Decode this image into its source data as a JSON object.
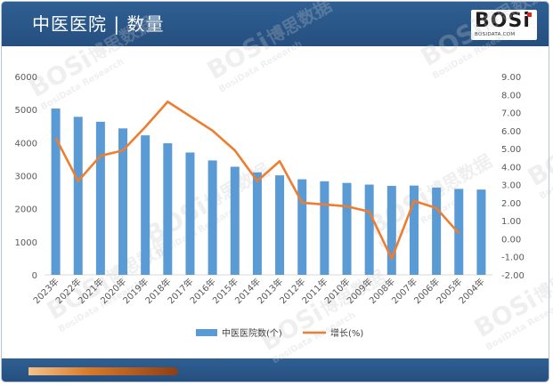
{
  "header": {
    "title": "中医医院 | 数量"
  },
  "logo": {
    "main": "BOSi",
    "sub": "BOSIDATA.COM"
  },
  "colors": {
    "bar": "#5b9bd5",
    "line": "#ed7d31",
    "header": "#2a5686"
  },
  "chart_data": {
    "type": "bar",
    "categories": [
      "2023年",
      "2022年",
      "2021年",
      "2020年",
      "2019年",
      "2018年",
      "2017年",
      "2016年",
      "2015年",
      "2014年",
      "2013年",
      "2012年",
      "2011年",
      "2010年",
      "2009年",
      "2008年",
      "2007年",
      "2006年",
      "2005年",
      "2004年"
    ],
    "series": [
      {
        "name": "中医医院数(个)",
        "type": "bar",
        "axis": "left",
        "values": [
          5030,
          4780,
          4630,
          4430,
          4220,
          3980,
          3700,
          3460,
          3270,
          3100,
          3010,
          2890,
          2830,
          2780,
          2730,
          2690,
          2700,
          2640,
          2600,
          2580
        ]
      },
      {
        "name": "增长(%)",
        "type": "line",
        "axis": "right",
        "values": [
          5.6,
          3.2,
          4.6,
          4.9,
          6.2,
          7.6,
          6.8,
          6.0,
          4.9,
          3.2,
          4.3,
          2.0,
          1.9,
          1.8,
          1.5,
          -1.1,
          2.1,
          1.7,
          0.3,
          null
        ]
      }
    ],
    "y_left": {
      "min": 0,
      "max": 6000,
      "step": 1000,
      "ticks": [
        "0",
        "1000",
        "2000",
        "3000",
        "4000",
        "5000",
        "6000"
      ]
    },
    "y_right": {
      "min": -2,
      "max": 9,
      "step": 1,
      "ticks": [
        "-2.00",
        "-1.00",
        "0.00",
        "1.00",
        "2.00",
        "3.00",
        "4.00",
        "5.00",
        "6.00",
        "7.00",
        "8.00",
        "9.00"
      ]
    },
    "grid": false,
    "legend": "bottom"
  },
  "watermark": {
    "text_cn": "博思数据",
    "text_en": "BosiData Research",
    "logo": "BOSi"
  }
}
